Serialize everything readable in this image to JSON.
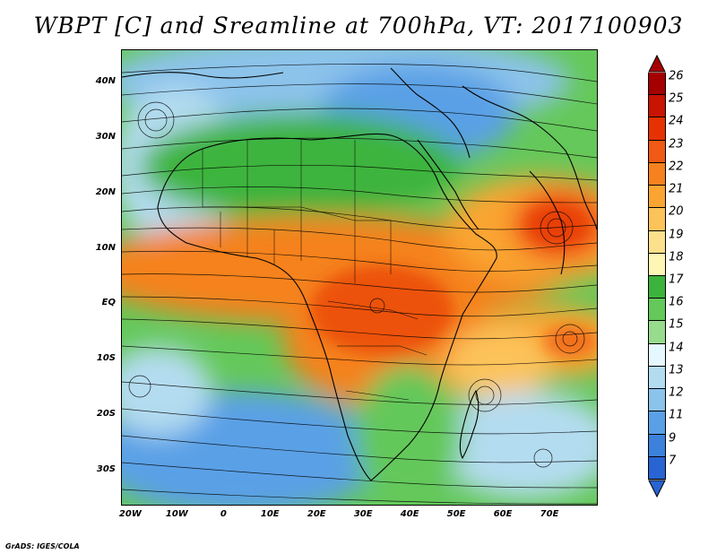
{
  "title": "WBPT [C] and Sreamline at 700hPa, VT: 2017100903",
  "credit": "GrADS: IGES/COLA",
  "map": {
    "lat_labels": [
      {
        "text": "40N",
        "lat": 40
      },
      {
        "text": "30N",
        "lat": 30
      },
      {
        "text": "20N",
        "lat": 20
      },
      {
        "text": "10N",
        "lat": 10
      },
      {
        "text": "EQ",
        "lat": 0
      },
      {
        "text": "10S",
        "lat": -10
      },
      {
        "text": "20S",
        "lat": -20
      },
      {
        "text": "30S",
        "lat": -30
      }
    ],
    "lon_labels": [
      {
        "text": "20W",
        "lon": -20
      },
      {
        "text": "10W",
        "lon": -10
      },
      {
        "text": "0",
        "lon": 0
      },
      {
        "text": "10E",
        "lon": 10
      },
      {
        "text": "20E",
        "lon": 20
      },
      {
        "text": "30E",
        "lon": 30
      },
      {
        "text": "40E",
        "lon": 40
      },
      {
        "text": "50E",
        "lon": 50
      },
      {
        "text": "60E",
        "lon": 60
      },
      {
        "text": "70E",
        "lon": 70
      }
    ]
  },
  "colorbar": {
    "labels": [
      "26",
      "25",
      "24",
      "23",
      "22",
      "21",
      "20",
      "19",
      "18",
      "17",
      "16",
      "15",
      "14",
      "13",
      "12",
      "11",
      "9",
      "7"
    ],
    "colors": [
      "#a50000",
      "#c81400",
      "#e63200",
      "#f05a14",
      "#f5821e",
      "#faa532",
      "#fcc35a",
      "#fde08c",
      "#fff5b4",
      "#3cb43c",
      "#64c85a",
      "#96dc8c",
      "#e6f8ff",
      "#b4dcf0",
      "#8cc3eb",
      "#5aa0e6",
      "#3c82dc",
      "#2864d2"
    ]
  }
}
